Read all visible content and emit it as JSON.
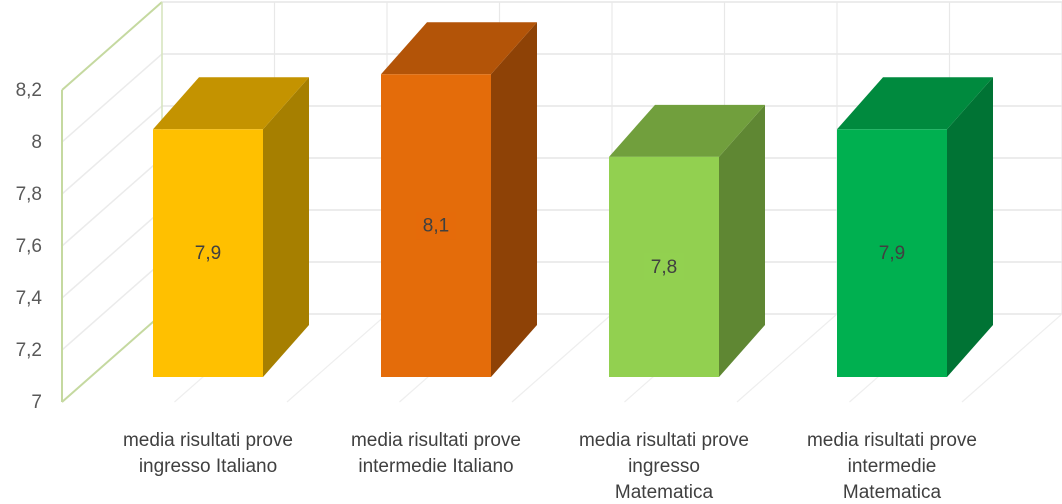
{
  "chart_data": {
    "type": "bar",
    "title": "",
    "xlabel": "",
    "ylabel": "",
    "categories": [
      [
        "media risultati prove",
        "ingresso Italiano"
      ],
      [
        "media risultati prove",
        "intermedie Italiano"
      ],
      [
        "media risultati prove",
        "ingresso",
        "Matematica"
      ],
      [
        "media risultati prove",
        "intermedie",
        "Matematica"
      ]
    ],
    "values": [
      7.9,
      8.1,
      7.8,
      7.9
    ],
    "data_labels": [
      "7,9",
      "8,1",
      "7,8",
      "7,9"
    ],
    "ylim": [
      7,
      8.2
    ],
    "yticks": [
      7,
      7.2,
      7.4,
      7.6,
      7.8,
      8,
      8.2
    ],
    "ytick_labels": [
      "7",
      "7,2",
      "7,4",
      "7,6",
      "7,8",
      "8",
      "8,2"
    ],
    "grid": true,
    "legend": "none",
    "style": "3d-column",
    "colors": [
      {
        "front": "#FFC000",
        "side": "#A67F00",
        "top": "#C49300",
        "label_bg": "#FFC000"
      },
      {
        "front": "#E46C0A",
        "side": "#8E4206",
        "top": "#B35408",
        "label_bg": "#E46C0A"
      },
      {
        "front": "#92D050",
        "side": "#5F8733",
        "top": "#719F3D",
        "label_bg": "#92D050"
      },
      {
        "front": "#00B050",
        "side": "#007334",
        "top": "#008A3E",
        "label_bg": "#00B050"
      }
    ]
  }
}
